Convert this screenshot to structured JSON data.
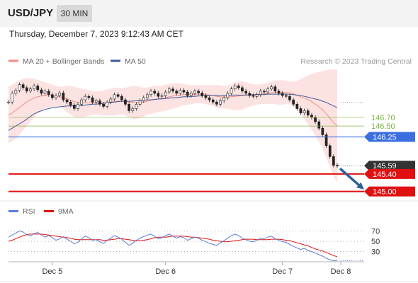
{
  "header": {
    "symbol": "USD/JPY",
    "timeframe": "30 MIN",
    "datetime": "Thursday, December 7, 2023 9:12:43 AM CET"
  },
  "chart_data": [
    {
      "type": "line",
      "title": "",
      "legend": [
        {
          "label": "MA 20 + Bollinger Bands",
          "color": "#f28b82"
        },
        {
          "label": "MA 50",
          "color": "#3d5a99"
        }
      ],
      "legend_position": "top-left",
      "watermark": "Research © 2023 Trading Central",
      "x_ticks": [
        "Dec 5",
        "Dec 6",
        "Dec 7",
        "Dec 8"
      ],
      "y_range": [
        144.75,
        147.8
      ],
      "levels": [
        {
          "value": 146.7,
          "label": "146.70",
          "kind": "resistance",
          "color": "#7cb342"
        },
        {
          "value": 146.5,
          "label": "146.50",
          "kind": "resistance",
          "color": "#7cb342"
        },
        {
          "value": 146.25,
          "label": "146.25",
          "kind": "pivot",
          "color": "#3b6fe0"
        },
        {
          "value": 145.59,
          "label": "145.59",
          "kind": "last",
          "color": "#333333"
        },
        {
          "value": 145.4,
          "label": "145.40",
          "kind": "support",
          "color": "#e01010"
        },
        {
          "value": 145.0,
          "label": "145.00",
          "kind": "support",
          "color": "#e01010"
        }
      ],
      "price_close": [
        147.05,
        147.25,
        147.32,
        147.45,
        147.38,
        147.3,
        147.35,
        147.42,
        147.33,
        147.25,
        147.3,
        147.22,
        147.15,
        147.2,
        147.26,
        147.1,
        147.05,
        146.98,
        146.9,
        147.0,
        147.1,
        147.18,
        147.15,
        147.05,
        147.08,
        147.0,
        146.95,
        147.05,
        147.12,
        147.22,
        147.18,
        147.1,
        147.0,
        146.85,
        146.9,
        147.0,
        147.08,
        147.15,
        147.22,
        147.3,
        147.25,
        147.18,
        147.2,
        147.28,
        147.35,
        147.3,
        147.25,
        147.32,
        147.28,
        147.2,
        147.25,
        147.3,
        147.26,
        147.2,
        147.15,
        147.1,
        147.05,
        147.0,
        147.08,
        147.15,
        147.25,
        147.35,
        147.42,
        147.38,
        147.3,
        147.25,
        147.2,
        147.18,
        147.22,
        147.3,
        147.28,
        147.35,
        147.4,
        147.3,
        147.25,
        147.2,
        147.18,
        147.1,
        147.0,
        146.9,
        146.8,
        146.85,
        146.75,
        146.7,
        146.6,
        146.45,
        146.3,
        146.05,
        145.8,
        145.6,
        145.59
      ],
      "ma20": [
        146.75,
        146.8,
        146.86,
        146.93,
        146.99,
        147.05,
        147.1,
        147.14,
        147.17,
        147.19,
        147.2,
        147.2,
        147.19,
        147.18,
        147.17,
        147.15,
        147.12,
        147.09,
        147.06,
        147.04,
        147.03,
        147.03,
        147.03,
        147.03,
        147.03,
        147.03,
        147.03,
        147.04,
        147.05,
        147.06,
        147.07,
        147.07,
        147.06,
        147.05,
        147.04,
        147.04,
        147.04,
        147.05,
        147.07,
        147.09,
        147.11,
        147.12,
        147.13,
        147.15,
        147.17,
        147.19,
        147.2,
        147.21,
        147.22,
        147.22,
        147.22,
        147.23,
        147.23,
        147.23,
        147.22,
        147.21,
        147.2,
        147.18,
        147.17,
        147.16,
        147.16,
        147.17,
        147.18,
        147.19,
        147.2,
        147.21,
        147.21,
        147.21,
        147.22,
        147.23,
        147.24,
        147.25,
        147.26,
        147.27,
        147.27,
        147.27,
        147.27,
        147.26,
        147.24,
        147.21,
        147.17,
        147.14,
        147.1,
        147.06,
        147.0,
        146.94,
        146.87,
        146.78,
        146.68,
        146.58,
        146.5
      ],
      "bb_upper": [
        147.4,
        147.45,
        147.5,
        147.55,
        147.58,
        147.6,
        147.6,
        147.58,
        147.56,
        147.53,
        147.5,
        147.48,
        147.45,
        147.42,
        147.4,
        147.4,
        147.42,
        147.42,
        147.4,
        147.38,
        147.36,
        147.34,
        147.32,
        147.3,
        147.3,
        147.3,
        147.32,
        147.34,
        147.36,
        147.38,
        147.38,
        147.37,
        147.38,
        147.4,
        147.42,
        147.42,
        147.4,
        147.38,
        147.38,
        147.4,
        147.42,
        147.42,
        147.43,
        147.45,
        147.47,
        147.48,
        147.48,
        147.47,
        147.46,
        147.45,
        147.44,
        147.44,
        147.44,
        147.44,
        147.44,
        147.44,
        147.44,
        147.44,
        147.43,
        147.42,
        147.43,
        147.46,
        147.5,
        147.52,
        147.52,
        147.5,
        147.48,
        147.46,
        147.45,
        147.46,
        147.47,
        147.49,
        147.52,
        147.54,
        147.55,
        147.55,
        147.54,
        147.52,
        147.52,
        147.54,
        147.58,
        147.62,
        147.66,
        147.7,
        147.72,
        147.74,
        147.76,
        147.78,
        147.8,
        147.8,
        147.8
      ],
      "bb_lower": [
        146.1,
        146.15,
        146.22,
        146.3,
        146.4,
        146.5,
        146.6,
        146.7,
        146.78,
        146.85,
        146.9,
        146.92,
        146.93,
        146.94,
        146.94,
        146.9,
        146.82,
        146.76,
        146.72,
        146.7,
        146.7,
        146.72,
        146.74,
        146.76,
        146.76,
        146.76,
        146.74,
        146.74,
        146.74,
        146.74,
        146.76,
        146.77,
        146.74,
        146.7,
        146.66,
        146.66,
        146.68,
        146.72,
        146.76,
        146.78,
        146.8,
        146.82,
        146.83,
        146.85,
        146.87,
        146.9,
        146.92,
        146.95,
        146.98,
        146.99,
        147.0,
        147.02,
        147.02,
        147.02,
        147.0,
        146.98,
        146.96,
        146.92,
        146.91,
        146.9,
        146.89,
        146.88,
        146.86,
        146.86,
        146.88,
        146.92,
        146.94,
        146.96,
        146.99,
        147.0,
        147.01,
        147.01,
        147.0,
        147.0,
        146.99,
        146.99,
        147.0,
        147.0,
        146.96,
        146.88,
        146.76,
        146.66,
        146.54,
        146.42,
        146.28,
        146.14,
        145.98,
        145.78,
        145.56,
        145.36,
        145.2
      ],
      "ma50": [
        146.4,
        146.45,
        146.5,
        146.55,
        146.6,
        146.66,
        146.72,
        146.78,
        146.82,
        146.85,
        146.88,
        146.9,
        146.92,
        146.93,
        146.94,
        146.95,
        146.96,
        146.96,
        146.96,
        146.96,
        146.97,
        146.98,
        146.99,
        147.0,
        147.0,
        147.01,
        147.02,
        147.03,
        147.04,
        147.05,
        147.06,
        147.07,
        147.07,
        147.07,
        147.07,
        147.08,
        147.08,
        147.09,
        147.1,
        147.1,
        147.11,
        147.12,
        147.12,
        147.13,
        147.14,
        147.15,
        147.15,
        147.16,
        147.17,
        147.17,
        147.18,
        147.18,
        147.19,
        147.19,
        147.2,
        147.2,
        147.2,
        147.2,
        147.2,
        147.2,
        147.2,
        147.21,
        147.21,
        147.21,
        147.21,
        147.21,
        147.22,
        147.22,
        147.22,
        147.22,
        147.22,
        147.23,
        147.23,
        147.23,
        147.23,
        147.23,
        147.23,
        147.23,
        147.22,
        147.21,
        147.2,
        147.18,
        147.16,
        147.14,
        147.12,
        147.1,
        147.07,
        147.04,
        147.0,
        146.96,
        146.92
      ],
      "forecast_arrow": {
        "from": 145.59,
        "to": 145.0
      }
    },
    {
      "type": "line",
      "title": "",
      "legend": [
        {
          "label": "RSI",
          "color": "#5b7bd5"
        },
        {
          "label": "9MA",
          "color": "#e01010"
        }
      ],
      "y_ticks": [
        70,
        50,
        30
      ],
      "y_range": [
        10,
        90
      ],
      "rsi": [
        58,
        62,
        66,
        70,
        68,
        63,
        60,
        65,
        67,
        62,
        58,
        61,
        57,
        52,
        55,
        59,
        54,
        50,
        45,
        48,
        55,
        60,
        57,
        52,
        53,
        49,
        46,
        52,
        56,
        61,
        58,
        54,
        48,
        42,
        46,
        52,
        56,
        59,
        62,
        64,
        60,
        55,
        57,
        61,
        64,
        60,
        56,
        59,
        57,
        52,
        55,
        58,
        56,
        52,
        49,
        46,
        44,
        42,
        47,
        51,
        56,
        61,
        64,
        61,
        56,
        53,
        50,
        49,
        52,
        56,
        55,
        58,
        60,
        55,
        52,
        49,
        48,
        44,
        40,
        37,
        34,
        36,
        32,
        30,
        27,
        24,
        21,
        17,
        14,
        12,
        12
      ],
      "rsi_ma": [
        50,
        52,
        55,
        58,
        61,
        63,
        64,
        64,
        64,
        64,
        63,
        62,
        61,
        60,
        59,
        58,
        57,
        56,
        54,
        53,
        53,
        53,
        53,
        53,
        53,
        53,
        52,
        52,
        53,
        54,
        55,
        55,
        54,
        53,
        52,
        51,
        51,
        52,
        53,
        55,
        57,
        58,
        58,
        58,
        59,
        60,
        60,
        60,
        60,
        59,
        58,
        58,
        57,
        56,
        55,
        54,
        52,
        51,
        50,
        49,
        49,
        50,
        51,
        52,
        53,
        54,
        54,
        54,
        53,
        53,
        53,
        53,
        54,
        54,
        54,
        53,
        52,
        51,
        49,
        47,
        45,
        43,
        41,
        38,
        35,
        33,
        31,
        28,
        25,
        22,
        20
      ]
    }
  ]
}
